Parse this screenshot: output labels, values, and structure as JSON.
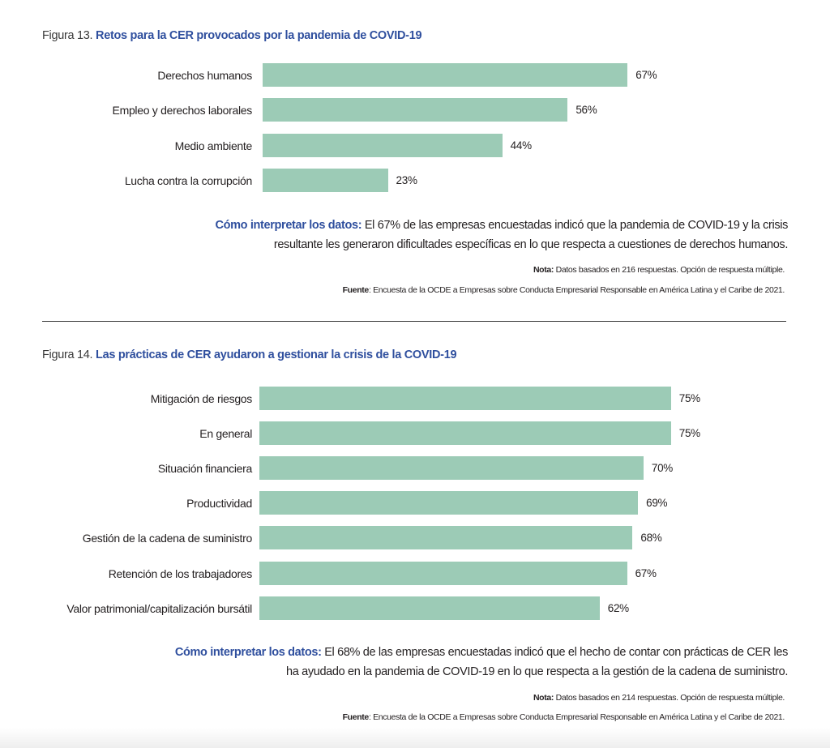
{
  "chart_data": [
    {
      "type": "bar",
      "orientation": "horizontal",
      "figure_number": "Figura 13.",
      "title": "Retos para la CER provocados por la pandemia de COVID-19",
      "categories": [
        "Derechos humanos",
        "Empleo y derechos laborales",
        "Medio ambiente",
        "Lucha contra la corrupción"
      ],
      "values": [
        67,
        56,
        44,
        23
      ],
      "value_labels": [
        "67%",
        "56%",
        "44%",
        "23%"
      ],
      "unit": "%",
      "xlim": [
        0,
        100
      ],
      "grid": false,
      "bar_color": "#9ccbb6",
      "interpretation_label": "Cómo interpretar los datos:",
      "interpretation_text": " El 67% de las empresas encuestadas indicó que la pandemia de COVID-19 y la crisis resultante les generaron dificultades específicas en lo que respecta a cuestiones de derechos humanos.",
      "note_label": "Nota:",
      "note_text": " Datos basados en 216 respuestas. Opción de respuesta múltiple.",
      "source_label": "Fuente",
      "source_text": ": Encuesta de la OCDE a Empresas sobre Conducta Empresarial Responsable en América Latina y el Caribe de 2021."
    },
    {
      "type": "bar",
      "orientation": "horizontal",
      "figure_number": "Figura 14.",
      "title": "Las prácticas de CER ayudaron a gestionar la crisis de la COVID-19",
      "categories": [
        "Mitigación de riesgos",
        "En general",
        "Situación financiera",
        "Productividad",
        "Gestión de la cadena de suministro",
        "Retención de los trabajadores",
        "Valor patrimonial/capitalización bursátil"
      ],
      "values": [
        75,
        75,
        70,
        69,
        68,
        67,
        62
      ],
      "value_labels": [
        "75%",
        "75%",
        "70%",
        "69%",
        "68%",
        "67%",
        "62%"
      ],
      "unit": "%",
      "xlim": [
        0,
        100
      ],
      "grid": false,
      "bar_color": "#9ccbb6",
      "interpretation_label": "Cómo interpretar los datos:",
      "interpretation_text": " El 68% de las empresas encuestadas indicó que el hecho de contar con prácticas de CER les ha ayudado en la pandemia de COVID-19 en lo que respecta a la gestión de la cadena de suministro.",
      "note_label": "Nota:",
      "note_text": " Datos basados en 214 respuestas. Opción de respuesta múltiple.",
      "source_label": "Fuente",
      "source_text": ": Encuesta de la OCDE a Empresas sobre Conducta Empresarial Responsable en América Latina y el Caribe de 2021."
    }
  ]
}
